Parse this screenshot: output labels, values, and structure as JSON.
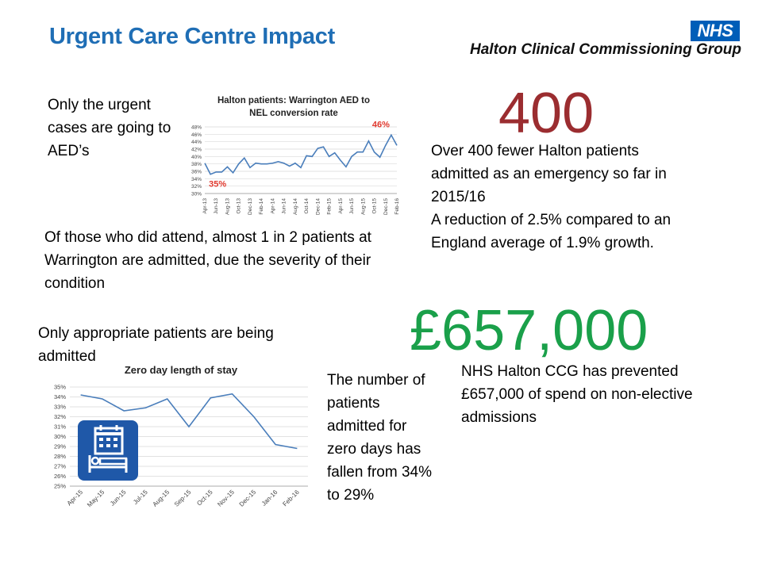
{
  "header": {
    "title": "Urgent Care Centre Impact",
    "nhs_logo": "NHS",
    "org_name": "Halton Clinical Commissioning Group"
  },
  "text": {
    "aed_note": "Only the urgent cases are going to AED’s",
    "attend_note": "Of those who did attend, almost 1 in 2 patients at Warrington are admitted, due the severity of their condition",
    "appropriate_note": "Only appropriate patients are being admitted",
    "zero_days_note": "The number of patients admitted for zero days has fallen from 34% to 29%",
    "big_400": "400",
    "fewer_admitted_note": "Over 400 fewer Halton patients admitted as an emergency so far in 2015/16\nA reduction of 2.5% compared to an England average of 1.9% growth.",
    "big_657": "£657,000",
    "prevented_note": "NHS Halton CCG has prevented £657,000 of spend on non-elective admissions"
  },
  "icons": {
    "calendar": "hospital-bed-calendar-icon"
  },
  "chart_data": [
    {
      "type": "line",
      "title": "Halton patients: Warrington AED to NEL conversion rate",
      "xlabel": "",
      "ylabel": "",
      "ylim": [
        30,
        48
      ],
      "y_ticks": [
        "48%",
        "46%",
        "44%",
        "42%",
        "40%",
        "38%",
        "36%",
        "34%",
        "32%",
        "30%"
      ],
      "x_tick_labels": [
        "Apr-13",
        "Jun-13",
        "Aug-13",
        "Oct-13",
        "Dec-13",
        "Feb-14",
        "Apr-14",
        "Jun-14",
        "Aug-14",
        "Oct-14",
        "Dec-14",
        "Feb-15",
        "Apr-15",
        "Jun-15",
        "Aug-15",
        "Oct-15",
        "Dec-15",
        "Feb-16"
      ],
      "annotations": [
        "35%",
        "46%"
      ],
      "color": "#4a7ebb",
      "annotation_color": "#e03a2f",
      "grid": true,
      "series": [
        {
          "values": [
            38.2,
            35.2,
            35.8,
            35.8,
            37.2,
            35.6,
            38.0,
            39.6,
            37.0,
            38.2,
            38.0,
            38.0,
            38.2,
            38.6,
            38.2,
            37.4,
            38.2,
            37.0,
            40.2,
            40.0,
            42.2,
            42.6,
            40.0,
            41.0,
            39.0,
            37.2,
            40.0,
            41.2,
            41.2,
            44.2,
            41.2,
            39.8,
            43.0,
            45.8,
            43.0
          ]
        }
      ]
    },
    {
      "type": "line",
      "title": "Zero day length of stay",
      "xlabel": "",
      "ylabel": "",
      "ylim": [
        25,
        35
      ],
      "y_ticks": [
        "35%",
        "34%",
        "33%",
        "32%",
        "31%",
        "30%",
        "29%",
        "28%",
        "27%",
        "26%",
        "25%"
      ],
      "categories": [
        "Apr-15",
        "May-15",
        "Jun-15",
        "Jul-15",
        "Aug-15",
        "Sep-15",
        "Oct-15",
        "Nov-15",
        "Dec-15",
        "Jan-16",
        "Feb-16"
      ],
      "color": "#4a7ebb",
      "grid": true,
      "series": [
        {
          "values": [
            34.2,
            33.8,
            32.6,
            32.9,
            33.8,
            31.0,
            33.9,
            34.3,
            32.0,
            29.2,
            28.8
          ]
        }
      ]
    }
  ]
}
